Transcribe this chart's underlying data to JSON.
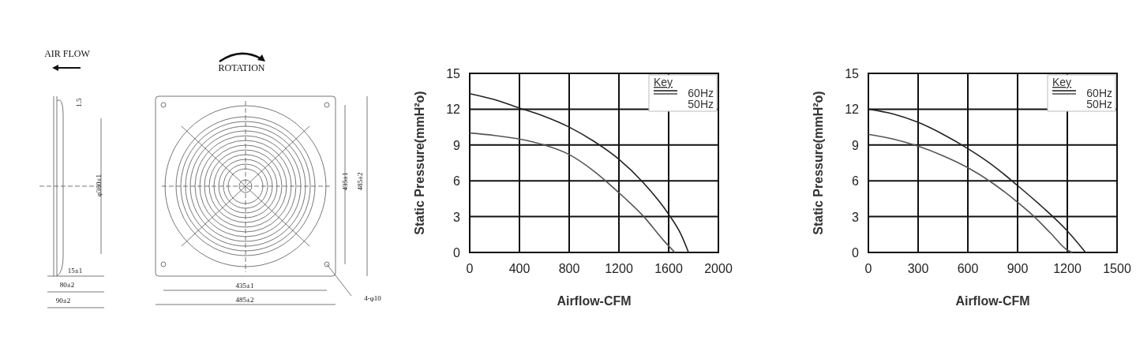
{
  "chart_data": [
    {
      "type": "other",
      "annotations": [
        "AIR FLOW",
        "ROTATION",
        "1.5",
        "φ360±1",
        "435±1",
        "485±2",
        "15±1",
        "80±2",
        "90±2",
        "435±1",
        "485±2",
        "4-φ10"
      ]
    },
    {
      "type": "line",
      "xlabel": "Airflow-CFM",
      "ylabel": "Static Pressure(mmH²o)",
      "xlim": [
        0,
        2000
      ],
      "xticks": [
        0,
        400,
        800,
        1200,
        1600,
        2000
      ],
      "ylim": [
        0,
        15
      ],
      "yticks": [
        0,
        3,
        6,
        9,
        12,
        15
      ],
      "grid": true,
      "legend": "top right",
      "legend_title": "Key",
      "series": [
        {
          "name": "60Hz",
          "color": "#222222",
          "x": [
            0,
            200,
            400,
            600,
            800,
            1000,
            1200,
            1400,
            1600,
            1700,
            1760
          ],
          "values": [
            13.3,
            12.8,
            12.1,
            11.4,
            10.5,
            9.3,
            7.8,
            5.8,
            3.2,
            1.5,
            0
          ]
        },
        {
          "name": "50Hz",
          "color": "#555555",
          "x": [
            0,
            200,
            400,
            600,
            800,
            1000,
            1200,
            1400,
            1560,
            1650
          ],
          "values": [
            10,
            9.8,
            9.5,
            9,
            8.2,
            6.8,
            5,
            3,
            1,
            0
          ]
        }
      ]
    },
    {
      "type": "line",
      "xlabel": "Airflow-CFM",
      "ylabel": "Static Pressure(mmH²o)",
      "xlim": [
        0,
        1500
      ],
      "xticks": [
        0,
        300,
        600,
        900,
        1200,
        1500
      ],
      "ylim": [
        0,
        15
      ],
      "yticks": [
        0,
        3,
        6,
        9,
        12,
        15
      ],
      "grid": true,
      "legend": "top right",
      "legend_title": "Key",
      "series": [
        {
          "name": "60Hz",
          "color": "#222222",
          "x": [
            0,
            150,
            300,
            450,
            600,
            750,
            900,
            1050,
            1200,
            1310
          ],
          "values": [
            12,
            11.6,
            10.9,
            9.9,
            8.7,
            7.3,
            5.6,
            3.8,
            1.8,
            0
          ]
        },
        {
          "name": "50Hz",
          "color": "#555555",
          "x": [
            0,
            150,
            300,
            450,
            600,
            750,
            900,
            1000,
            1100,
            1200,
            1230
          ],
          "values": [
            9.9,
            9.5,
            8.9,
            8.1,
            7.1,
            5.8,
            4.2,
            3,
            1.6,
            0.2,
            0
          ]
        }
      ]
    }
  ]
}
